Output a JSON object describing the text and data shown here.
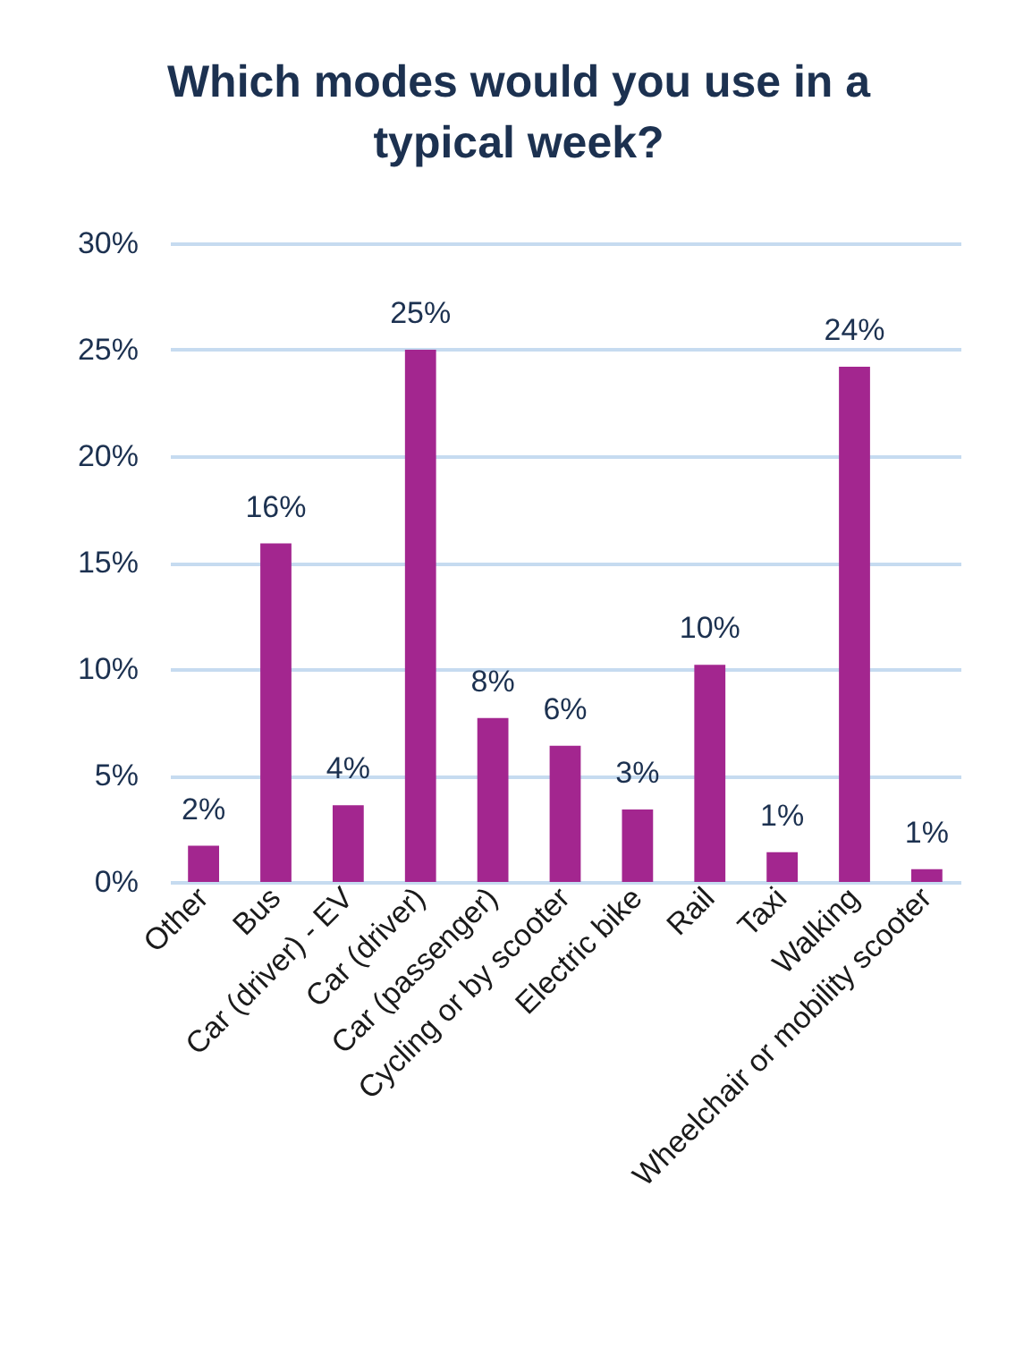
{
  "chart_data": {
    "type": "bar",
    "title": "Which modes would you use in a typical week?",
    "categories": [
      "Other",
      "Bus",
      "Car (driver) - EV",
      "Car (driver)",
      "Car (passenger)",
      "Cycling or by scooter",
      "Electric bike",
      "Rail",
      "Taxi",
      "Walking",
      "Wheelchair or mobility scooter"
    ],
    "values": [
      1.7,
      15.9,
      3.6,
      25.0,
      7.7,
      6.4,
      3.4,
      10.2,
      1.4,
      24.2,
      0.6
    ],
    "value_labels": [
      "2%",
      "16%",
      "4%",
      "25%",
      "8%",
      "6%",
      "3%",
      "10%",
      "1%",
      "24%",
      "1%"
    ],
    "color": "#a3268f",
    "ylim": [
      0,
      30
    ],
    "yticks": [
      {
        "value": 0,
        "label": "0%"
      },
      {
        "value": 5,
        "label": "5%"
      },
      {
        "value": 10,
        "label": "10%"
      },
      {
        "value": 15,
        "label": "15%"
      },
      {
        "value": 20,
        "label": "20%"
      },
      {
        "value": 25,
        "label": "25%"
      },
      {
        "value": 30,
        "label": "30%"
      }
    ],
    "grid": "y"
  }
}
